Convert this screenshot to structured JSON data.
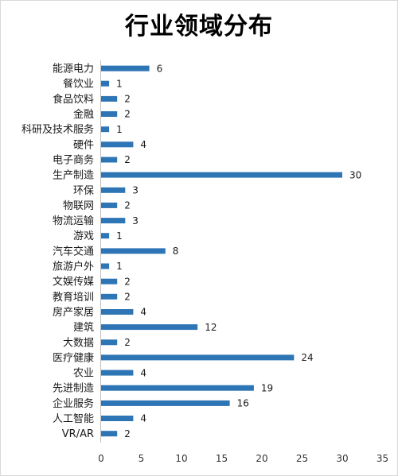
{
  "chart_data": {
    "type": "bar",
    "orientation": "horizontal",
    "title": "行业领域分布",
    "xlabel": "",
    "ylabel": "",
    "categories": [
      "能源电力",
      "餐饮业",
      "食品饮料",
      "金融",
      "科研及技术服务",
      "硬件",
      "电子商务",
      "生产制造",
      "环保",
      "物联网",
      "物流运输",
      "游戏",
      "汽车交通",
      "旅游户外",
      "文娱传媒",
      "教育培训",
      "房产家居",
      "建筑",
      "大数据",
      "医疗健康",
      "农业",
      "先进制造",
      "企业服务",
      "人工智能",
      "VR/AR"
    ],
    "values": [
      6,
      1,
      2,
      2,
      1,
      4,
      2,
      30,
      3,
      2,
      3,
      1,
      8,
      1,
      2,
      2,
      4,
      12,
      2,
      24,
      4,
      19,
      16,
      4,
      2
    ],
    "xlim": [
      0,
      35
    ],
    "xticks": [
      0,
      5,
      10,
      15,
      20,
      25,
      30,
      35
    ],
    "grid": false,
    "legend": "none",
    "bar_color": "#2e75b6",
    "data_labels": true
  }
}
